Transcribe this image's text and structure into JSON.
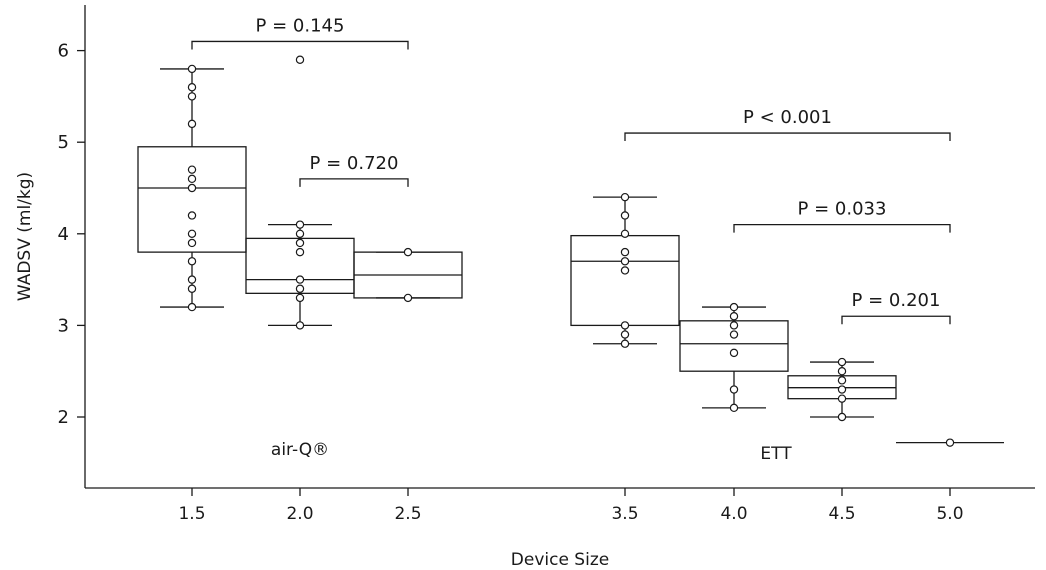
{
  "chart_data": {
    "type": "box",
    "xlabel": "Device Size",
    "ylabel": "WADSV (ml/kg)",
    "ylim": [
      1.3,
      6.5
    ],
    "yticks": [
      2,
      3,
      4,
      5,
      6
    ],
    "xticks": [
      "1.5",
      "2.0",
      "2.5",
      "3.5",
      "4.0",
      "4.5",
      "5.0"
    ],
    "group_labels": [
      {
        "text": "air-Q®",
        "position": "under 2.0"
      },
      {
        "text": "ETT",
        "position": "under 4.0"
      }
    ],
    "boxes": [
      {
        "category": "1.5",
        "min": 3.2,
        "q1": 3.8,
        "median": 4.5,
        "q3": 4.95,
        "max": 5.8,
        "points": [
          3.2,
          3.4,
          3.5,
          3.7,
          3.9,
          4.0,
          4.2,
          4.5,
          4.6,
          4.7,
          5.2,
          5.5,
          5.6,
          5.8
        ]
      },
      {
        "category": "2.0",
        "min": 3.0,
        "q1": 3.35,
        "median": 3.5,
        "q3": 3.95,
        "max": 4.1,
        "points": [
          3.0,
          3.3,
          3.4,
          3.5,
          3.8,
          3.9,
          4.0,
          4.1,
          5.9
        ]
      },
      {
        "category": "2.5",
        "min": 3.3,
        "q1": 3.3,
        "median": 3.55,
        "q3": 3.8,
        "max": 3.8,
        "points": [
          3.3,
          3.8
        ]
      },
      {
        "category": "3.5",
        "min": 2.8,
        "q1": 3.0,
        "median": 3.7,
        "q3": 3.98,
        "max": 4.4,
        "points": [
          2.8,
          2.9,
          3.0,
          3.6,
          3.7,
          3.8,
          4.0,
          4.2,
          4.4
        ]
      },
      {
        "category": "4.0",
        "min": 2.1,
        "q1": 2.5,
        "median": 2.8,
        "q3": 3.05,
        "max": 3.2,
        "points": [
          2.1,
          2.3,
          2.7,
          2.9,
          3.0,
          3.1,
          3.2
        ]
      },
      {
        "category": "4.5",
        "min": 2.0,
        "q1": 2.2,
        "median": 2.32,
        "q3": 2.45,
        "max": 2.6,
        "points": [
          2.0,
          2.2,
          2.3,
          2.4,
          2.5,
          2.6
        ]
      },
      {
        "category": "5.0",
        "min": 1.72,
        "q1": 1.72,
        "median": 1.72,
        "q3": 1.72,
        "max": 1.72,
        "points": [
          1.72
        ]
      }
    ],
    "comparisons": [
      {
        "from": "1.5",
        "to": "2.5",
        "y": 6.1,
        "label": "P = 0.145"
      },
      {
        "from": "2.0",
        "to": "2.5",
        "y": 4.6,
        "label": "P = 0.720"
      },
      {
        "from": "3.5",
        "to": "5.0",
        "y": 5.1,
        "label": "P < 0.001"
      },
      {
        "from": "4.0",
        "to": "5.0",
        "y": 4.1,
        "label": "P = 0.033"
      },
      {
        "from": "4.5",
        "to": "5.0",
        "y": 3.1,
        "label": "P = 0.201"
      }
    ]
  }
}
